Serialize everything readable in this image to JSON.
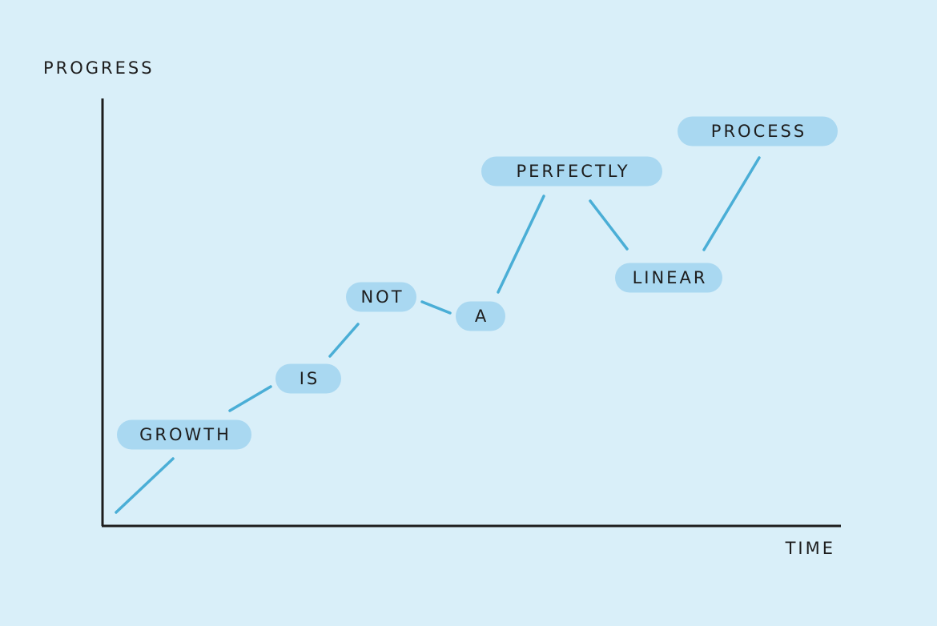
{
  "axes": {
    "y_label": "PROGRESS",
    "x_label": "TIME"
  },
  "nodes": [
    {
      "label": "GROWTH"
    },
    {
      "label": "IS"
    },
    {
      "label": "NOT"
    },
    {
      "label": "A"
    },
    {
      "label": "PERFECTLY"
    },
    {
      "label": "LINEAR"
    },
    {
      "label": "PROCESS"
    }
  ]
}
